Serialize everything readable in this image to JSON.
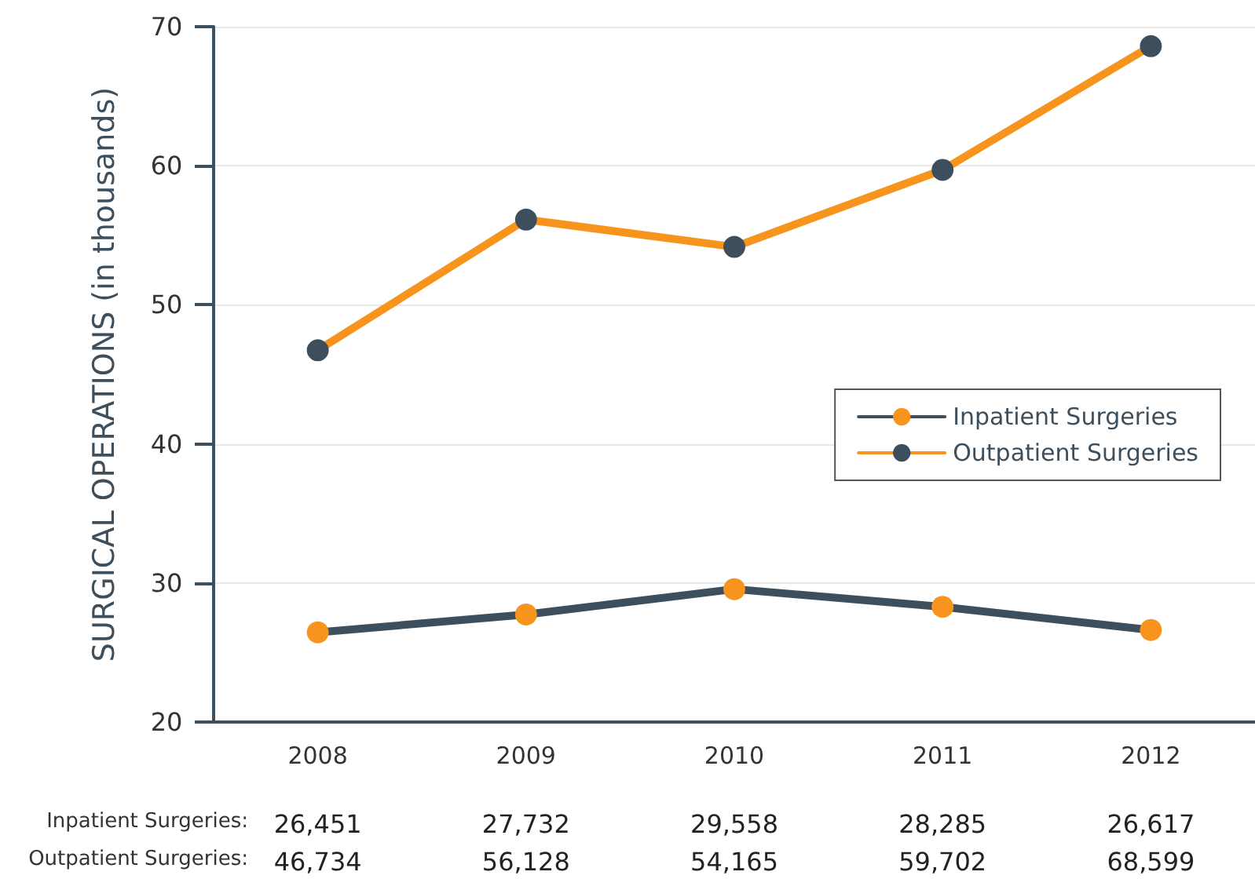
{
  "chart_data": {
    "type": "line",
    "ylabel": "SURGICAL OPERATIONS (in thousands)",
    "categories": [
      "2008",
      "2009",
      "2010",
      "2011",
      "2012"
    ],
    "series": [
      {
        "name": "Inpatient Surgeries",
        "color": "#3d4f5c",
        "values": [
          26.451,
          27.732,
          29.558,
          28.285,
          26.617
        ]
      },
      {
        "name": "Outpatient Surgeries",
        "color": "#f7941d",
        "values": [
          46.734,
          56.128,
          54.165,
          59.702,
          68.599
        ]
      }
    ],
    "annotations": [
      "Inpatient Surgeries:",
      "26,451",
      "27,732",
      "29,558",
      "28,285",
      "26,617",
      "Outpatient Surgeries:",
      "46,734",
      "56,128",
      "54,165",
      "59,702",
      "68,599"
    ],
    "ylim": [
      20,
      70
    ],
    "yticks": [
      20,
      30,
      40,
      50,
      60,
      70
    ],
    "grid": "y",
    "legend": "right",
    "marker": "circle",
    "line_style": "solid"
  }
}
